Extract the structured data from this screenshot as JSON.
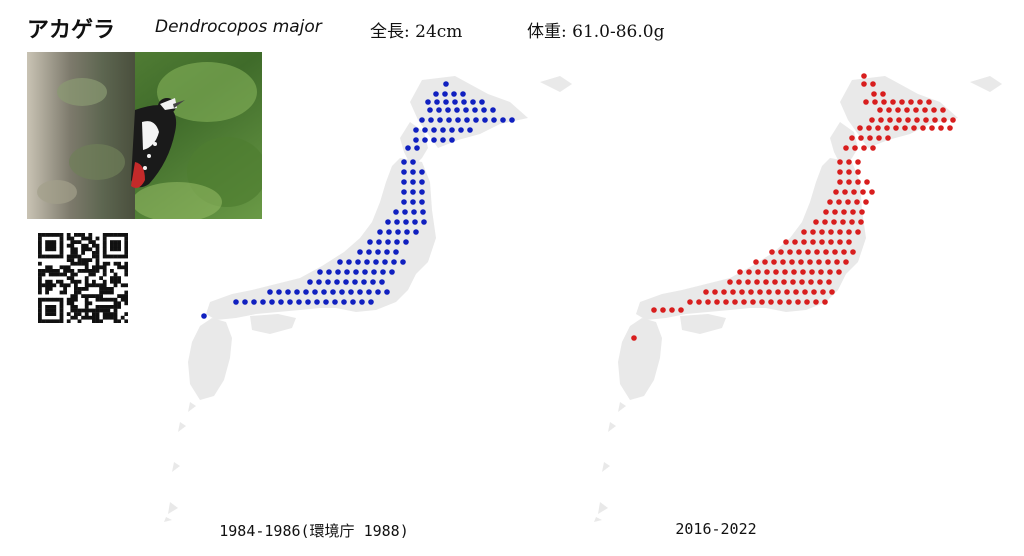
{
  "header": {
    "name_jp": "アカゲラ",
    "name_scientific": "Dendrocopos major",
    "length": "全長: 24cm",
    "weight": "体重: 61.0-86.0g"
  },
  "photo": {
    "subject": "great spotted woodpecker on tree trunk"
  },
  "qr_code": {
    "icon": "qr-code-icon"
  },
  "maps": [
    {
      "caption": "1984-1986(環境庁 1988)",
      "dot_color": "#1020c0"
    },
    {
      "caption": "2016-2022",
      "dot_color": "#d81e1e"
    }
  ],
  "colors": {
    "land": "#e9e9e9",
    "background": "#ffffff"
  }
}
